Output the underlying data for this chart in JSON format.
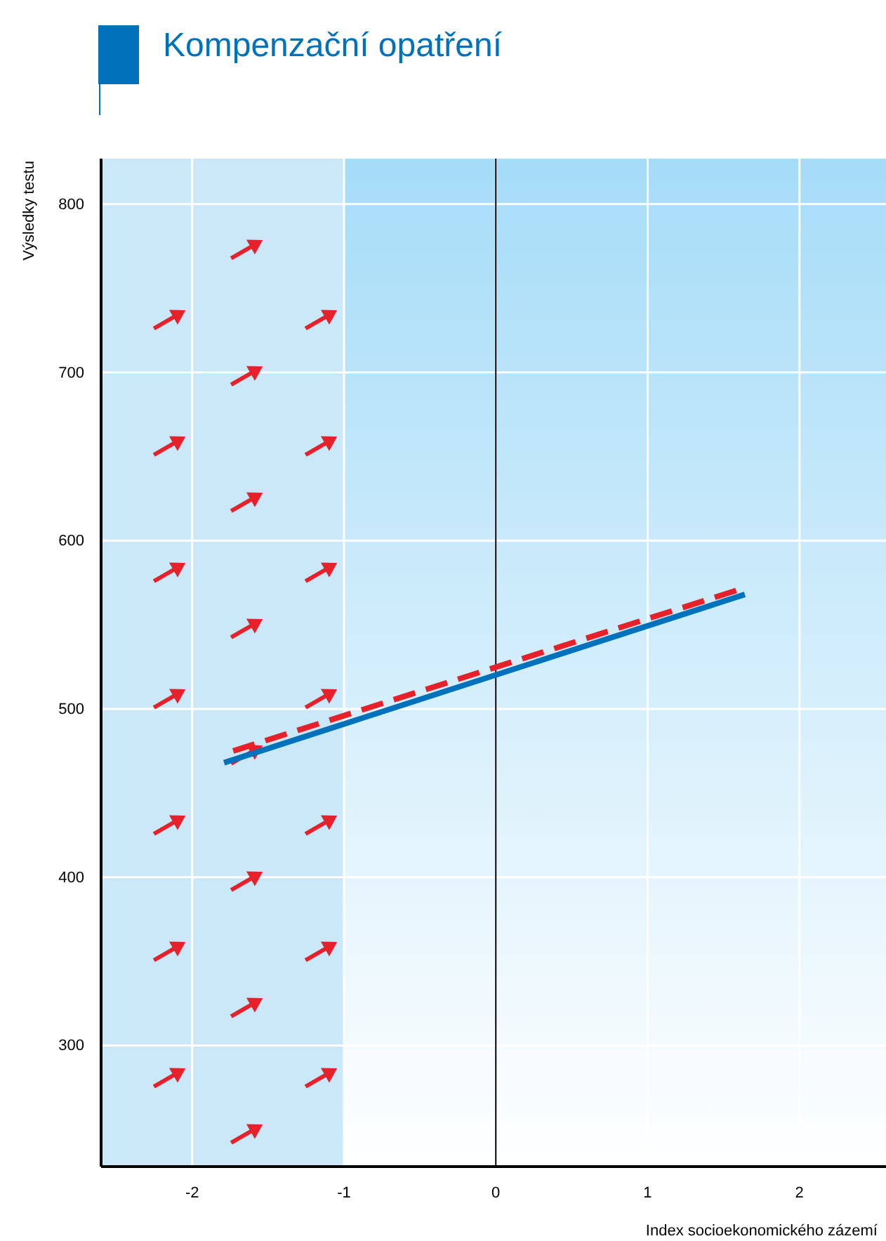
{
  "chart_data": {
    "type": "line",
    "title": "Kompenzační opatření",
    "xlabel": "Index socioekonomického zázemí",
    "ylabel": "Výsledky testu",
    "xlim": [
      -2.6,
      2.57
    ],
    "ylim": [
      228,
      827
    ],
    "xticks": [
      -2,
      -1,
      0,
      1,
      2
    ],
    "yticks": [
      300,
      400,
      500,
      600,
      700,
      800
    ],
    "grid": true,
    "ref_lines": [
      {
        "axis": "x",
        "value": 0,
        "color": "#000000"
      }
    ],
    "bands": [
      {
        "axis": "x",
        "from": -2.6,
        "to": -1,
        "color": "#cbe8f8"
      }
    ],
    "series": [
      {
        "x": [
          -1.79,
          1.64
        ],
        "values": [
          468,
          568
        ],
        "color": "#0072bc",
        "line_style": "solid"
      },
      {
        "x": [
          -1.73,
          1.64
        ],
        "values": [
          475,
          572
        ],
        "color": "#e8202a",
        "line_style": "dashed"
      }
    ]
  }
}
